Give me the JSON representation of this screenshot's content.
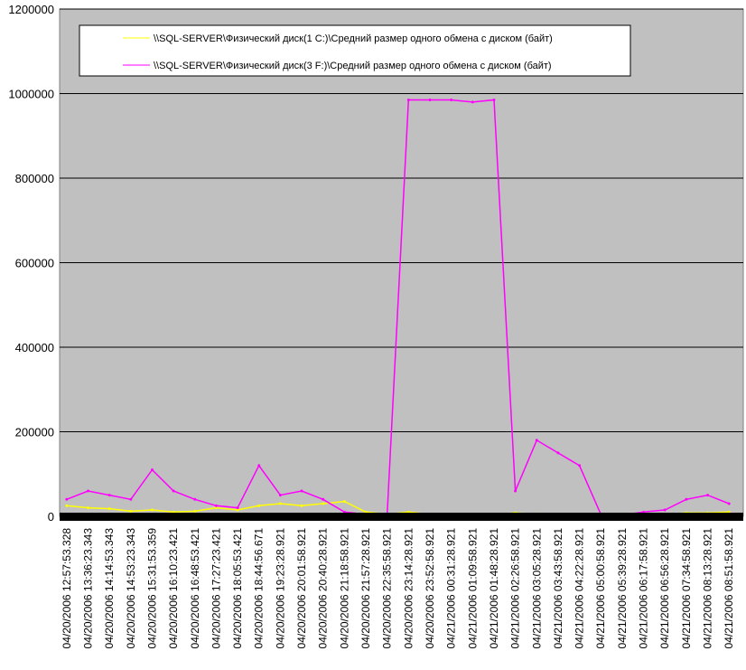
{
  "chart_data": {
    "type": "line",
    "title": "",
    "xlabel": "",
    "ylabel": "",
    "ylim": [
      0,
      1200000
    ],
    "yticks": [
      "0",
      "200000",
      "400000",
      "600000",
      "800000",
      "1000000",
      "1200000"
    ],
    "grid": true,
    "legend_position": "top-left",
    "background_color": "#c0c0c0",
    "x": [
      "04/20/2006 12:57:53.328",
      "04/20/2006 13:36:23.343",
      "04/20/2006 14:14:53.343",
      "04/20/2006 14:53:23.343",
      "04/20/2006 15:31:53.359",
      "04/20/2006 16:10:23.421",
      "04/20/2006 16:48:53.421",
      "04/20/2006 17:27:23.421",
      "04/20/2006 18:05:53.421",
      "04/20/2006 18:44:56.671",
      "04/20/2006 19:23:28.921",
      "04/20/2006 20:01:58.921",
      "04/20/2006 20:40:28.921",
      "04/20/2006 21:18:58.921",
      "04/20/2006 21:57:28.921",
      "04/20/2006 22:35:58.921",
      "04/20/2006 23:14:28.921",
      "04/20/2006 23:52:58.921",
      "04/21/2006 00:31:28.921",
      "04/21/2006 01:09:58.921",
      "04/21/2006 01:48:28.921",
      "04/21/2006 02:26:58.921",
      "04/21/2006 03:05:28.921",
      "04/21/2006 03:43:58.921",
      "04/21/2006 04:22:28.921",
      "04/21/2006 05:00:58.921",
      "04/21/2006 05:39:28.921",
      "04/21/2006 06:17:58.921",
      "04/21/2006 06:56:28.921",
      "04/21/2006 07:34:58.921",
      "04/21/2006 08:13:28.921",
      "04/21/2006 08:51:58.921"
    ],
    "series": [
      {
        "name": "\\\\SQL-SERVER\\Физический диск(1 C:)\\Средний размер одного обмена с диском (байт)",
        "color": "#ffff00",
        "values": [
          25000,
          20000,
          18000,
          12000,
          15000,
          10000,
          12000,
          20000,
          15000,
          25000,
          30000,
          25000,
          30000,
          35000,
          10000,
          5000,
          10000,
          5000,
          5000,
          5000,
          5000,
          8000,
          6000,
          5000,
          5000,
          5000,
          5000,
          5000,
          5000,
          8000,
          8000,
          10000
        ]
      },
      {
        "name": "\\\\SQL-SERVER\\Физический диск(3 F:)\\Средний размер одного обмена с диском (байт)",
        "color": "#ff00ff",
        "values": [
          40000,
          60000,
          50000,
          40000,
          110000,
          60000,
          40000,
          25000,
          20000,
          120000,
          50000,
          60000,
          40000,
          10000,
          5000,
          5000,
          985000,
          985000,
          985000,
          980000,
          985000,
          60000,
          180000,
          150000,
          120000,
          5000,
          3000,
          10000,
          15000,
          40000,
          50000,
          30000
        ]
      }
    ]
  }
}
